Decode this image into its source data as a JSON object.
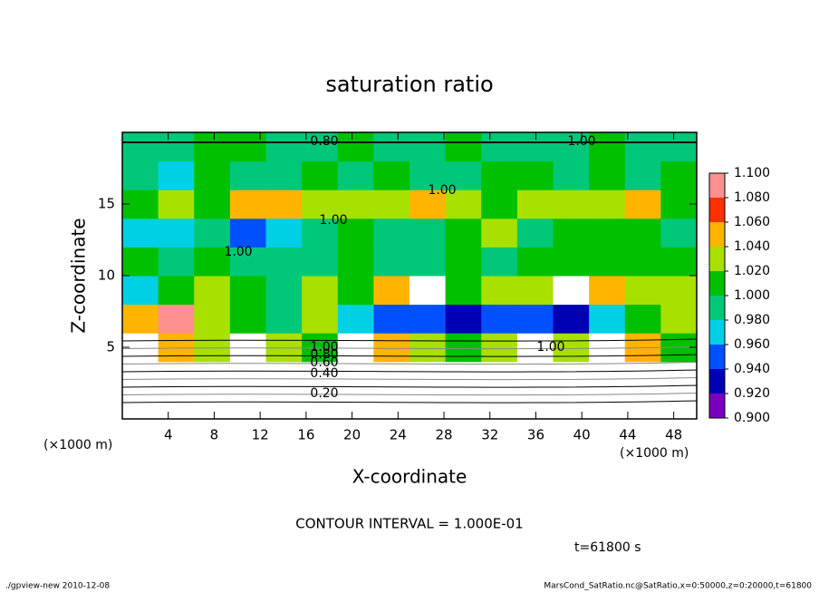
{
  "chart_data": {
    "type": "heatmap",
    "title": "saturation ratio",
    "xlabel": "X-coordinate",
    "ylabel": "Z-coordinate",
    "xunit": "(×1000 m)",
    "xunit2": "(×1000 m)",
    "xlim": [
      0,
      50
    ],
    "ylim": [
      0,
      20
    ],
    "xticks": [
      4,
      8,
      12,
      16,
      20,
      24,
      28,
      32,
      36,
      40,
      44,
      48
    ],
    "yticks": [
      5,
      10,
      15
    ],
    "clim": [
      0.9,
      1.1
    ],
    "cticks": [
      {
        "value": 0.9,
        "label": "0.900"
      },
      {
        "value": 0.92,
        "label": "0.920"
      },
      {
        "value": 0.94,
        "label": "0.940"
      },
      {
        "value": 0.96,
        "label": "0.960"
      },
      {
        "value": 0.98,
        "label": "0.980"
      },
      {
        "value": 1.0,
        "label": "1.000"
      },
      {
        "value": 1.02,
        "label": "1.020"
      },
      {
        "value": 1.04,
        "label": "1.040"
      },
      {
        "value": 1.06,
        "label": "1.060"
      },
      {
        "value": 1.08,
        "label": "1.080"
      },
      {
        "value": 1.1,
        "label": "1.100"
      }
    ],
    "colors": [
      "#7a00c0",
      "#0000b4",
      "#0050ff",
      "#00d0e6",
      "#00c878",
      "#00c000",
      "#a8e000",
      "#ffb400",
      "#ff3000",
      "#ff9090"
    ],
    "z": [
      [
        0.2,
        0.2,
        0.2,
        0.2,
        0.2,
        0.2,
        0.2,
        0.2,
        0.2,
        0.2,
        0.2,
        0.2,
        0.2,
        0.2,
        0.2,
        0.2
      ],
      [
        0.6,
        0.6,
        0.6,
        0.6,
        0.6,
        0.6,
        0.6,
        0.6,
        0.6,
        0.6,
        0.6,
        0.6,
        0.6,
        0.6,
        0.6,
        0.6
      ],
      [
        1.12,
        1.06,
        1.03,
        1.12,
        1.04,
        1.02,
        1.12,
        1.05,
        1.03,
        1.02,
        1.04,
        1.12,
        1.03,
        1.12,
        1.05,
        1.02
      ],
      [
        1.06,
        1.08,
        1.04,
        1.01,
        1.0,
        1.03,
        0.98,
        0.95,
        0.96,
        0.94,
        0.96,
        0.95,
        0.93,
        0.97,
        1.02,
        1.04
      ],
      [
        0.97,
        1.02,
        1.03,
        1.01,
        1.0,
        1.04,
        1.02,
        1.06,
        1.12,
        1.02,
        1.04,
        1.03,
        1.12,
        1.05,
        1.03,
        1.04
      ],
      [
        1.02,
        1.0,
        1.01,
        1.0,
        1.0,
        1.0,
        1.01,
        1.0,
        1.0,
        1.02,
        1.0,
        1.01,
        1.01,
        1.02,
        1.01,
        1.02
      ],
      [
        0.97,
        0.98,
        0.99,
        0.96,
        0.98,
        1.0,
        1.01,
        1.0,
        1.0,
        1.01,
        1.03,
        1.0,
        1.01,
        1.02,
        1.01,
        1.0
      ],
      [
        1.02,
        1.04,
        1.01,
        1.06,
        1.06,
        1.04,
        1.04,
        1.03,
        1.05,
        1.04,
        1.02,
        1.03,
        1.03,
        1.04,
        1.06,
        1.02
      ],
      [
        1.0,
        0.98,
        1.01,
        1.0,
        1.0,
        1.01,
        1.0,
        1.01,
        1.0,
        1.0,
        1.02,
        1.01,
        1.0,
        1.01,
        0.99,
        1.01
      ],
      [
        1.0,
        1.0,
        1.01,
        1.01,
        1.0,
        1.0,
        1.02,
        1.0,
        1.0,
        1.01,
        1.0,
        1.0,
        1.0,
        1.01,
        1.0,
        1.0
      ]
    ],
    "contour_labels": [
      "0.20",
      "0.40",
      "0.60",
      "0.80",
      "1.00",
      "1.00",
      "1.00",
      "1.00",
      "1.00",
      "0.80",
      "1.00"
    ],
    "annotation": "CONTOUR INTERVAL = 1.000E-01",
    "time_label": "t=61800 s",
    "footer_left": "./gpview-new  2010-12-08",
    "footer_right": "MarsCond_SatRatio.nc@SatRatio,x=0:50000,z=0:20000,t=61800"
  }
}
